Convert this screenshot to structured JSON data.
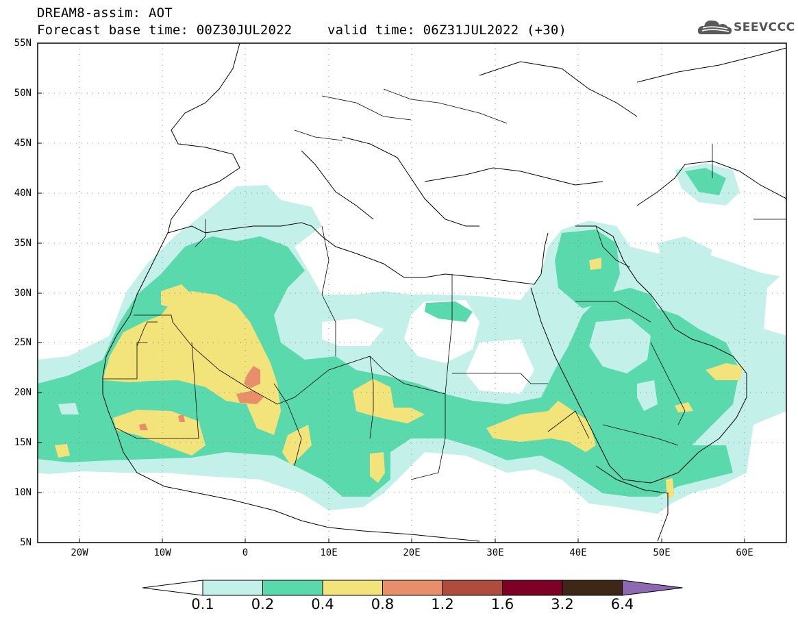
{
  "header": {
    "line1": "DREAM8-assim: AOT",
    "line2": "Forecast base time: 00Z30JUL2022",
    "line3": "valid time: 06Z31JUL2022 (+30)"
  },
  "logo": {
    "text": "SEEVCCC",
    "icon": "cloud-icon"
  },
  "map": {
    "lat_range": [
      5,
      55
    ],
    "lon_range": [
      -25,
      65
    ],
    "lat_labels": [
      "55N",
      "50N",
      "45N",
      "40N",
      "35N",
      "30N",
      "25N",
      "20N",
      "15N",
      "10N",
      "5N"
    ],
    "lon_labels": [
      "20W",
      "10W",
      "0",
      "10E",
      "20E",
      "30E",
      "40E",
      "50E",
      "60E"
    ]
  },
  "legend": {
    "labels": [
      "0.1",
      "0.2",
      "0.4",
      "0.8",
      "1.2",
      "1.6",
      "3.2",
      "6.4"
    ],
    "colors": [
      "#ffffff",
      "#c4f0ea",
      "#5ad9ad",
      "#f2e47a",
      "#e98e6a",
      "#b04c3e",
      "#7e0026",
      "#3e2717",
      "#8e68b0"
    ]
  }
}
